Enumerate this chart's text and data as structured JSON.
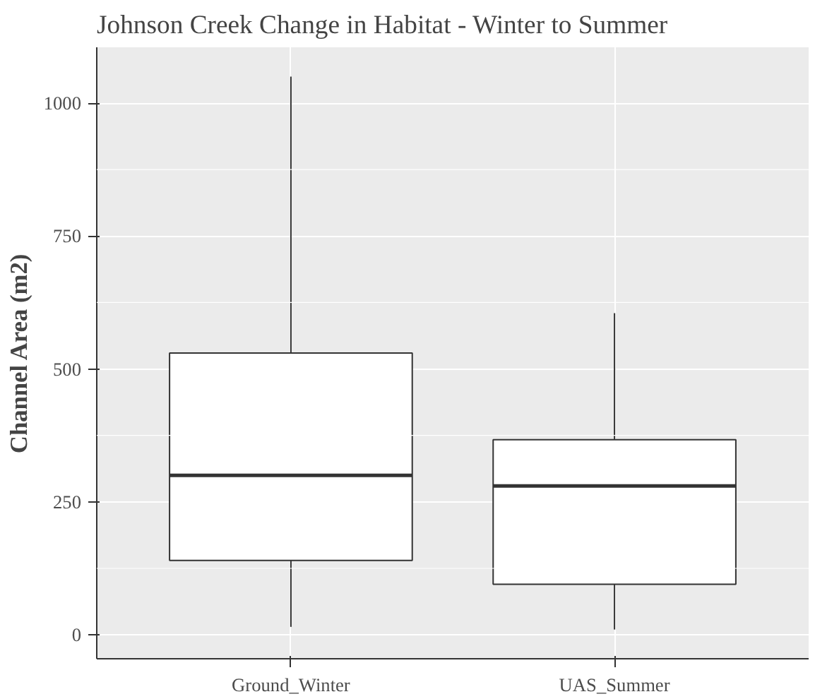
{
  "chart_data": {
    "type": "box",
    "title": "Johnson Creek Change in Habitat - Winter to Summer",
    "ylabel": "Channel Area (m2)",
    "categories": [
      "Ground_Winter",
      "UAS_Summer"
    ],
    "boxes": [
      {
        "low": 15,
        "q1": 140,
        "median": 300,
        "q3": 530,
        "high": 1050
      },
      {
        "low": 10,
        "q1": 95,
        "median": 280,
        "q3": 367,
        "high": 605
      }
    ],
    "ylim": [
      -45,
      1105
    ],
    "yticks": [
      0,
      250,
      500,
      750,
      1000
    ],
    "grid": true
  }
}
